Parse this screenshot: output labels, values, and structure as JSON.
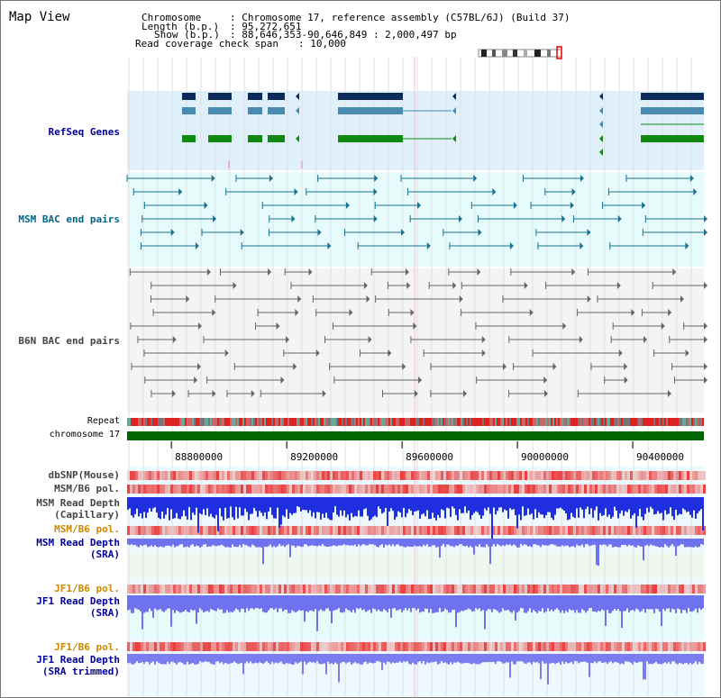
{
  "panel_title": "Map View",
  "header": {
    "chromosome_key": "Chromosome",
    "chromosome_value": ": Chromosome 17, reference assembly (C57BL/6J) (Build 37)",
    "length_key": "Length (b.p.)",
    "length_value": ": 95,272,651",
    "show_key": "Show (b.p.)",
    "show_value": ": 88,646,353-90,646,849 : 2,000,497 bp",
    "coverage_key": "Read coverage check span",
    "coverage_value": ": 10,000"
  },
  "tracks": {
    "refseq": "RefSeq Genes",
    "msm_bac": "MSM BAC end pairs",
    "b6n_bac": "B6N BAC end pairs",
    "repeat": "Repeat",
    "chromosome": "chromosome 17",
    "dbsnp": "dbSNP(Mouse)",
    "msm_b6_pol_1": "MSM/B6 pol.",
    "msm_depth_cap_1": "MSM Read Depth",
    "msm_depth_cap_2": "(Capillary)",
    "msm_b6_pol_2": "MSM/B6 pol.",
    "msm_depth_sra_1": "MSM Read Depth",
    "msm_depth_sra_2": "(SRA)",
    "jf1_b6_pol_1": "JF1/B6 pol.",
    "jf1_depth_sra_1": "JF1 Read Depth",
    "jf1_depth_sra_2": "(SRA)",
    "jf1_b6_pol_2": "JF1/B6 pol.",
    "jf1_depth_trim_1": "JF1 Read Depth",
    "jf1_depth_trim_2": "(SRA trimmed)"
  },
  "axis": {
    "tick_labels": [
      "88800000",
      "89200000",
      "89600000",
      "90000000",
      "90400000"
    ],
    "tick_values": [
      88800000,
      89200000,
      89600000,
      90000000,
      90400000
    ],
    "range": [
      88646353,
      90646849
    ]
  },
  "colors": {
    "refseq_bg": "#dff0fa",
    "msm_bg": "#e6fbfb",
    "gene_navy": "#0a2b5c",
    "gene_steel": "#4a8ab0",
    "gene_green": "#118811",
    "chromosome_bar": "#006600",
    "depth_blue": "#2233dd",
    "pol_red": "#ee2222"
  }
}
